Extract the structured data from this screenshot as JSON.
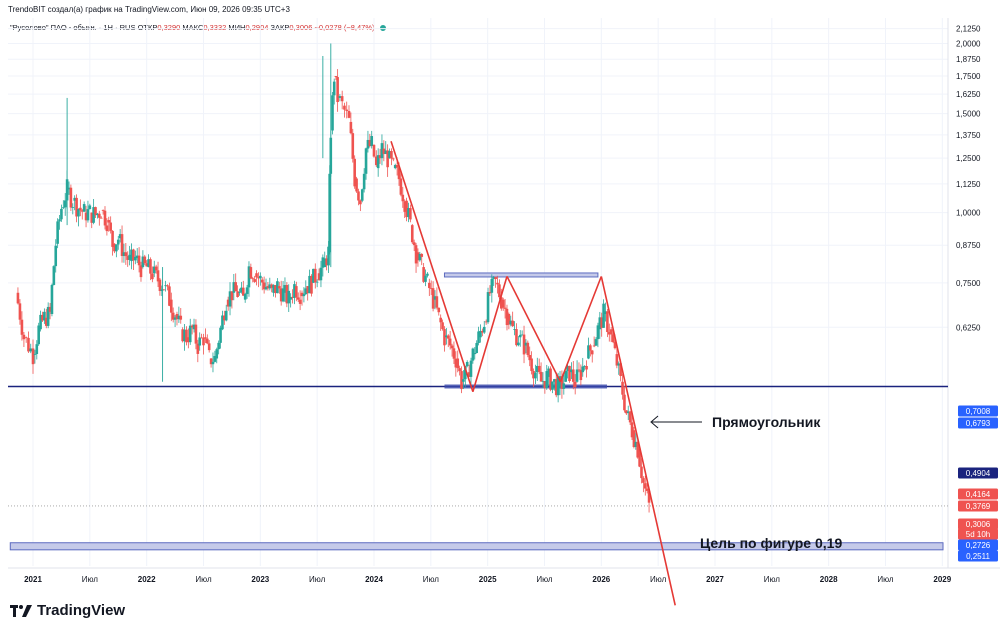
{
  "header": {
    "attribution": "TrendoBIT создал(а) график на TradingView.com, Июн 09, 2026 09:35 UTC+3"
  },
  "symbol": {
    "name": "\"Русолово\" ПАО - обыкн. · 1Н · RUS",
    "open_label": "ОТКР",
    "open": "0,3290",
    "high_label": "МАКС",
    "high": "0,3332",
    "low_label": "МИН",
    "low": "0,2904",
    "close_label": "ЗАКР",
    "close": "0,3006",
    "change": "−0,0278 (−8,47%)"
  },
  "annotations": {
    "rectangle_label": "Прямоугольник",
    "target_label": "Цель по фигуре 0,19"
  },
  "brand": {
    "name": "TradingView"
  },
  "colors": {
    "up": "#26a69a",
    "down": "#ef5350",
    "pattern_line": "#e53935",
    "support_line": "#1a237e",
    "rect_fill": "#c5cae9",
    "rect_border": "#5c6bc0",
    "axis_text": "#131722",
    "axis_badge_blue": "#2962ff",
    "axis_badge_red": "#ef5350",
    "axis_badge_navy": "#1a237e"
  },
  "chart_data": {
    "type": "candlestick",
    "interval": "1Н",
    "x_axis": {
      "tick_labels": [
        "2021",
        "Июл",
        "2022",
        "Июл",
        "2023",
        "Июл",
        "2024",
        "Июл",
        "2025",
        "Июл",
        "2026",
        "Июл",
        "2027",
        "Июл",
        "2028",
        "Июл",
        "2029"
      ]
    },
    "y_axis": {
      "tick_labels": [
        "2,1250",
        "2,0000",
        "1,8750",
        "1,7500",
        "1,6250",
        "1,5000",
        "1,3750",
        "1,2500",
        "1,1250",
        "1,0000",
        "0,8750",
        "0,7500",
        "0,6250"
      ],
      "range": [
        0.2,
        2.16
      ],
      "scale": "log",
      "price_badges": [
        {
          "value": "0,7008",
          "color": "blue"
        },
        {
          "value": "0,6793",
          "color": "blue"
        },
        {
          "value": "0,4904",
          "color": "navy"
        },
        {
          "value": "0,4164",
          "color": "red"
        },
        {
          "value": "0,3769",
          "color": "red"
        },
        {
          "value": "0,3006",
          "color": "red"
        },
        {
          "value": "5d 10h",
          "color": "red"
        },
        {
          "value": "0,2726",
          "color": "blue"
        },
        {
          "value": "0,2511",
          "color": "blue"
        }
      ]
    },
    "series": [
      {
        "kind": "weekly_close",
        "t": [
          2020.85,
          2020.92,
          2021.0,
          2021.05,
          2021.1,
          2021.15,
          2021.2,
          2021.25,
          2021.3,
          2021.35,
          2021.4,
          2021.45,
          2021.5,
          2021.55,
          2021.6,
          2021.65,
          2021.7,
          2021.75,
          2021.8,
          2021.85,
          2021.9,
          2021.95,
          2022.0,
          2022.05,
          2022.1,
          2022.15,
          2022.2,
          2022.25,
          2022.3,
          2022.35,
          2022.4,
          2022.45,
          2022.5,
          2022.55,
          2022.6,
          2022.65,
          2022.7,
          2022.75,
          2022.8,
          2022.85,
          2022.9,
          2022.95,
          2023.0,
          2023.05,
          2023.1,
          2023.15,
          2023.2,
          2023.25,
          2023.3,
          2023.35,
          2023.4,
          2023.45,
          2023.5,
          2023.55,
          2023.6,
          2023.62,
          2023.65,
          2023.68,
          2023.72,
          2023.78,
          2023.83,
          2023.88,
          2023.93,
          2023.98,
          2024.02,
          2024.07,
          2024.12,
          2024.17,
          2024.22,
          2024.27,
          2024.32,
          2024.37,
          2024.42,
          2024.47,
          2024.52,
          2024.57,
          2024.62,
          2024.67,
          2024.72,
          2024.77,
          2024.82,
          2024.87,
          2024.92,
          2024.97,
          2025.02,
          2025.07,
          2025.12,
          2025.17,
          2025.22,
          2025.27,
          2025.32,
          2025.37,
          2025.42,
          2025.47,
          2025.52,
          2025.57,
          2025.62,
          2025.67,
          2025.72,
          2025.77,
          2025.82,
          2025.87,
          2025.92,
          2025.97,
          2026.02,
          2026.07,
          2026.12,
          2026.17,
          2026.22,
          2026.27,
          2026.32,
          2026.37,
          2026.42
        ],
        "close": [
          0.72,
          0.6,
          0.56,
          0.62,
          0.65,
          0.66,
          0.88,
          1.02,
          1.1,
          1.05,
          1.02,
          1.0,
          1.0,
          0.99,
          1.01,
          0.97,
          0.88,
          0.9,
          0.85,
          0.82,
          0.83,
          0.8,
          0.8,
          0.78,
          0.76,
          0.74,
          0.7,
          0.66,
          0.62,
          0.6,
          0.62,
          0.58,
          0.6,
          0.55,
          0.55,
          0.62,
          0.7,
          0.72,
          0.72,
          0.7,
          0.8,
          0.78,
          0.76,
          0.74,
          0.72,
          0.74,
          0.72,
          0.7,
          0.74,
          0.72,
          0.74,
          0.75,
          0.78,
          0.8,
          0.85,
          1.4,
          1.75,
          1.6,
          1.55,
          1.45,
          1.15,
          1.05,
          1.3,
          1.32,
          1.2,
          1.3,
          1.25,
          1.2,
          1.15,
          1.05,
          0.95,
          0.85,
          0.8,
          0.75,
          0.7,
          0.65,
          0.6,
          0.58,
          0.55,
          0.5,
          0.52,
          0.56,
          0.6,
          0.64,
          0.72,
          0.75,
          0.7,
          0.66,
          0.62,
          0.6,
          0.58,
          0.55,
          0.52,
          0.5,
          0.51,
          0.5,
          0.49,
          0.5,
          0.52,
          0.5,
          0.52,
          0.55,
          0.58,
          0.62,
          0.66,
          0.62,
          0.56,
          0.5,
          0.44,
          0.41,
          0.38,
          0.33,
          0.3006
        ]
      }
    ],
    "levels": [
      {
        "name": "support",
        "value": 0.4904
      },
      {
        "name": "rectangle_top",
        "value": 0.7745
      },
      {
        "name": "rectangle_bottom",
        "value": 0.4904
      },
      {
        "name": "target_zone_top",
        "value": 0.2585
      },
      {
        "name": "target_zone_bottom",
        "value": 0.2511
      }
    ],
    "pattern_lines": [
      {
        "from": [
          2024.15,
          1.34
        ],
        "to": [
          2024.87,
          0.48
        ]
      },
      {
        "from": [
          2024.87,
          0.48
        ],
        "to": [
          2025.17,
          0.77
        ]
      },
      {
        "from": [
          2025.17,
          0.77
        ],
        "to": [
          2025.64,
          0.5
        ]
      },
      {
        "from": [
          2025.64,
          0.5
        ],
        "to": [
          2026.0,
          0.77
        ]
      },
      {
        "from": [
          2026.0,
          0.77
        ],
        "to": [
          2026.65,
          0.2
        ]
      }
    ]
  }
}
